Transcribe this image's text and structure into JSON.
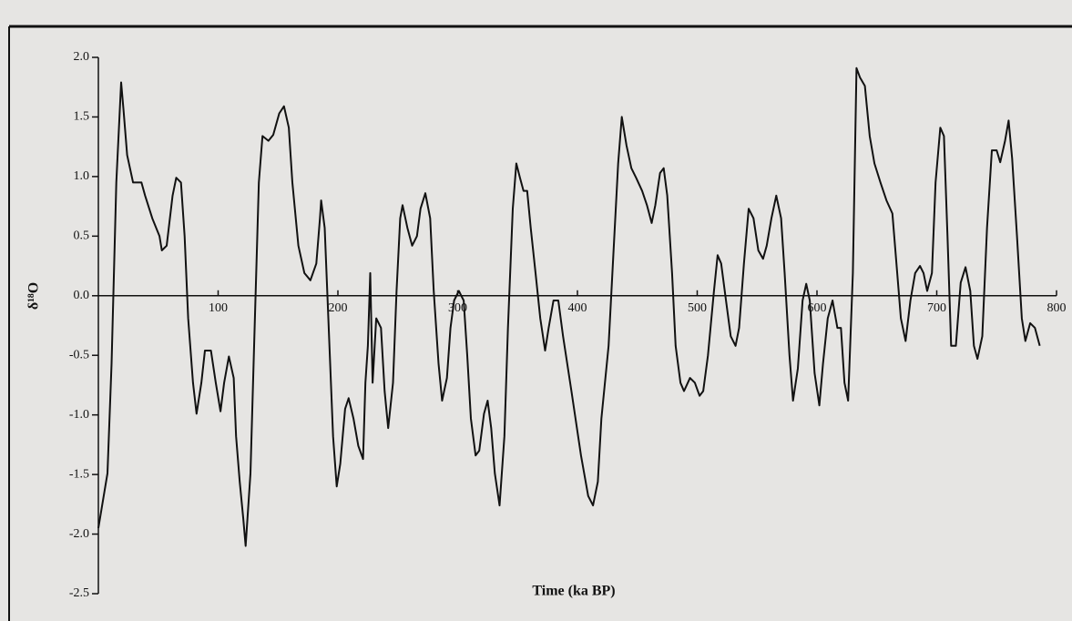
{
  "chart_data": {
    "type": "line",
    "x_label": "Time (ka BP)",
    "y_label": "δ¹⁸O",
    "xlim": [
      0,
      800
    ],
    "ylim": [
      -2.5,
      2.0
    ],
    "xticks": [
      100,
      200,
      300,
      400,
      500,
      600,
      700,
      800
    ],
    "yticks": [
      {
        "value": 2,
        "label": "2.0"
      },
      1.5,
      {
        "value": 1,
        "label": "1.0"
      },
      0.5,
      {
        "value": 0,
        "label": "0.0"
      },
      -0.5,
      {
        "value": -1,
        "label": "-1.0"
      },
      -1.5,
      {
        "value": -2,
        "label": "-2.0"
      },
      -2.5
    ],
    "series": [
      {
        "color": "#111111",
        "x": [
          0,
          7.6,
          11,
          15,
          19,
          21,
          24,
          29,
          36,
          39,
          45,
          51,
          53,
          57,
          62,
          65,
          69,
          72,
          75,
          79,
          82,
          86,
          89,
          94,
          98,
          102,
          105,
          109,
          113,
          115,
          118,
          121,
          123,
          127,
          130,
          134,
          137,
          142,
          146,
          151,
          155,
          159,
          162,
          167,
          172,
          177,
          182,
          185,
          186,
          189,
          192,
          196,
          199,
          202,
          206,
          209,
          213,
          217,
          221,
          223,
          225,
          227,
          229,
          232,
          236,
          239,
          242,
          246,
          249,
          252,
          254,
          258,
          262,
          266,
          269,
          273,
          277,
          280,
          284,
          287,
          291,
          294,
          297,
          301,
          305,
          308,
          311,
          315,
          318,
          322,
          325,
          328,
          331,
          335,
          339,
          342,
          346,
          349,
          352,
          355,
          358,
          361,
          365,
          369,
          373,
          376,
          380,
          384,
          388,
          395,
          403,
          409,
          413,
          417,
          420,
          426,
          430,
          434,
          437,
          441,
          445,
          449,
          454,
          458,
          462,
          465,
          469,
          472,
          475,
          479,
          482,
          486,
          489,
          494,
          498,
          502,
          505,
          509,
          514,
          517,
          520,
          524,
          528,
          532,
          535,
          539,
          543,
          547,
          551,
          555,
          558,
          562,
          566,
          570,
          573,
          577,
          580,
          584,
          588,
          591,
          594,
          598,
          602,
          605,
          609,
          613,
          617,
          620,
          623,
          626,
          630,
          633,
          636,
          640,
          644,
          648,
          653,
          658,
          663,
          667,
          670,
          674,
          678,
          682,
          686,
          689,
          692,
          696,
          699,
          703,
          706,
          709,
          712,
          716,
          720,
          724,
          728,
          731,
          734,
          738,
          742,
          746,
          750,
          753,
          757,
          760,
          763,
          767,
          771,
          774,
          778,
          782,
          786
        ],
        "values": [
          -1.95,
          -1.49,
          -0.57,
          0.95,
          1.79,
          1.56,
          1.18,
          0.95,
          0.95,
          0.84,
          0.65,
          0.5,
          0.38,
          0.42,
          0.84,
          0.99,
          0.95,
          0.5,
          -0.19,
          -0.73,
          -0.99,
          -0.73,
          -0.46,
          -0.46,
          -0.73,
          -0.97,
          -0.73,
          -0.51,
          -0.69,
          -1.18,
          -1.56,
          -1.87,
          -2.1,
          -1.49,
          -0.42,
          0.95,
          1.34,
          1.3,
          1.35,
          1.53,
          1.59,
          1.41,
          0.95,
          0.42,
          0.19,
          0.13,
          0.27,
          0.65,
          0.8,
          0.57,
          -0.19,
          -1.18,
          -1.6,
          -1.41,
          -0.95,
          -0.86,
          -1.03,
          -1.26,
          -1.37,
          -0.73,
          -0.42,
          0.19,
          -0.73,
          -0.19,
          -0.27,
          -0.8,
          -1.11,
          -0.73,
          0.04,
          0.65,
          0.76,
          0.57,
          0.42,
          0.5,
          0.73,
          0.86,
          0.65,
          0.04,
          -0.57,
          -0.88,
          -0.69,
          -0.27,
          -0.04,
          0.04,
          -0.04,
          -0.5,
          -1.03,
          -1.34,
          -1.3,
          -0.99,
          -0.88,
          -1.11,
          -1.49,
          -1.76,
          -1.18,
          -0.27,
          0.73,
          1.11,
          0.99,
          0.88,
          0.88,
          0.57,
          0.19,
          -0.19,
          -0.46,
          -0.27,
          -0.04,
          -0.04,
          -0.34,
          -0.8,
          -1.34,
          -1.68,
          -1.76,
          -1.56,
          -1.03,
          -0.42,
          0.34,
          1.11,
          1.5,
          1.26,
          1.07,
          0.99,
          0.88,
          0.76,
          0.61,
          0.76,
          1.03,
          1.07,
          0.84,
          0.19,
          -0.42,
          -0.73,
          -0.8,
          -0.69,
          -0.73,
          -0.84,
          -0.8,
          -0.5,
          0.04,
          0.34,
          0.27,
          -0.04,
          -0.34,
          -0.42,
          -0.27,
          0.27,
          0.73,
          0.65,
          0.38,
          0.31,
          0.42,
          0.65,
          0.84,
          0.65,
          0.19,
          -0.5,
          -0.88,
          -0.61,
          -0.04,
          0.1,
          -0.04,
          -0.65,
          -0.92,
          -0.57,
          -0.19,
          -0.04,
          -0.27,
          -0.27,
          -0.73,
          -0.88,
          0.19,
          1.91,
          1.83,
          1.76,
          1.34,
          1.11,
          0.95,
          0.8,
          0.69,
          0.19,
          -0.19,
          -0.38,
          -0.04,
          0.19,
          0.25,
          0.19,
          0.04,
          0.19,
          0.95,
          1.41,
          1.34,
          0.5,
          -0.42,
          -0.42,
          0.11,
          0.24,
          0.04,
          -0.42,
          -0.53,
          -0.34,
          0.57,
          1.22,
          1.22,
          1.12,
          1.3,
          1.47,
          1.15,
          0.5,
          -0.19,
          -0.38,
          -0.23,
          -0.27,
          -0.42
        ]
      }
    ]
  }
}
